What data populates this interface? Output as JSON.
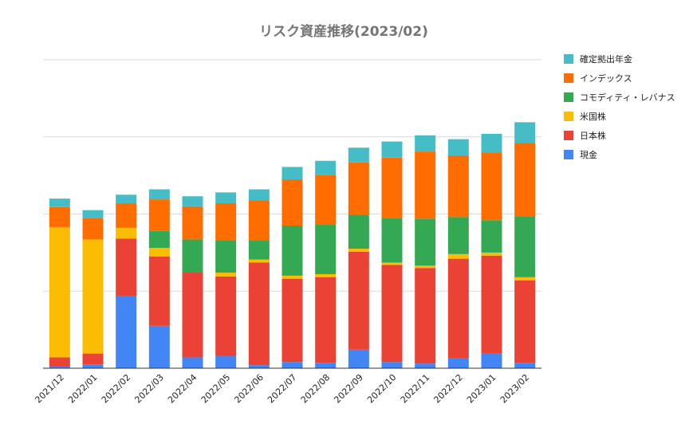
{
  "chart_data": {
    "type": "bar",
    "stacked": true,
    "title": "リスク資産推移(2023/02)",
    "xlabel": "",
    "ylabel": "",
    "y_tick_labels_shown": false,
    "grid": true,
    "legend_position": "right",
    "ylim": [
      0,
      400
    ],
    "categories": [
      "2021/12",
      "2022/01",
      "2022/02",
      "2022/03",
      "2022/04",
      "2022/05",
      "2022/06",
      "2022/07",
      "2022/08",
      "2022/09",
      "2022/10",
      "2022/11",
      "2022/12",
      "2023/01",
      "2023/02"
    ],
    "series": [
      {
        "name": "現金",
        "color": "#4285f4",
        "values": [
          2,
          5,
          94,
          55,
          14,
          16,
          4,
          8,
          7,
          24,
          8,
          6,
          13,
          19,
          7
        ]
      },
      {
        "name": "日本株",
        "color": "#ea4335",
        "values": [
          12,
          14,
          74,
          90,
          110,
          103,
          133,
          108,
          111,
          127,
          126,
          124,
          129,
          127,
          107
        ]
      },
      {
        "name": "米国株",
        "color": "#fbbc04",
        "values": [
          169,
          148,
          14,
          11,
          0,
          5,
          4,
          4,
          4,
          4,
          3,
          3,
          6,
          4,
          4
        ]
      },
      {
        "name": "コモディティ・レバナス",
        "color": "#34a853",
        "values": [
          0,
          0,
          0,
          22,
          43,
          42,
          25,
          65,
          64,
          44,
          58,
          61,
          48,
          42,
          79
        ]
      },
      {
        "name": "インデックス",
        "color": "#ff6d01",
        "values": [
          26,
          28,
          32,
          41,
          43,
          48,
          52,
          60,
          65,
          68,
          78,
          87,
          80,
          88,
          95
        ]
      },
      {
        "name": "確定拠出年金",
        "color": "#46bdc6",
        "values": [
          11,
          10,
          11,
          13,
          13,
          14,
          14,
          16,
          18,
          19,
          21,
          21,
          21,
          24,
          27
        ]
      }
    ],
    "legend_order": [
      "確定拠出年金",
      "インデックス",
      "コモディティ・レバナス",
      "米国株",
      "日本株",
      "現金"
    ]
  }
}
